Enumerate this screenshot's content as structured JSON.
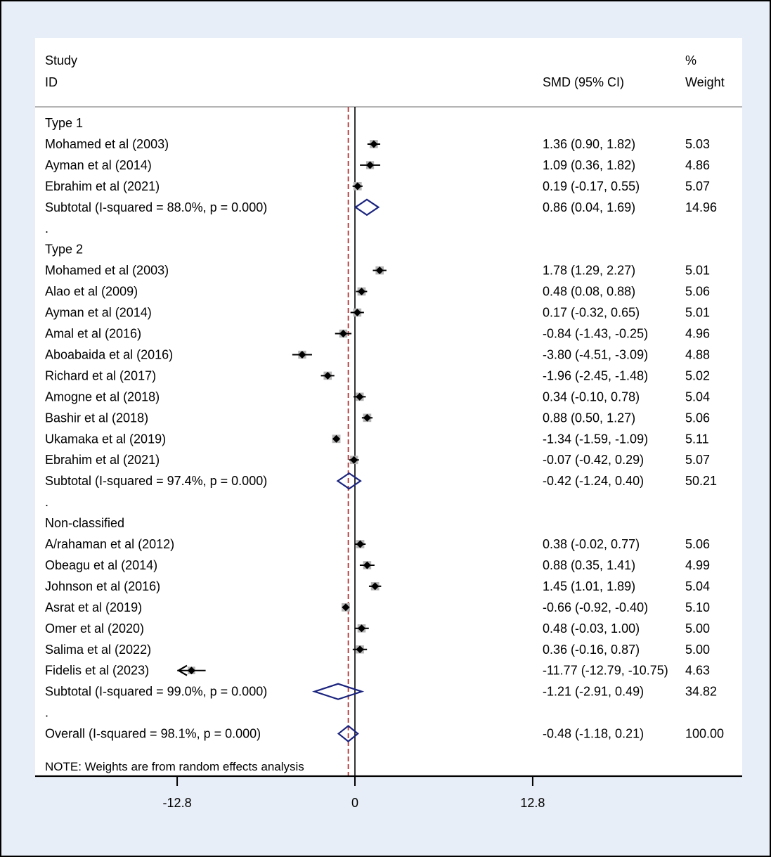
{
  "chart_data": {
    "type": "forest",
    "header": {
      "study": "Study",
      "id": "ID",
      "smd": "SMD (95% CI)",
      "pct": "%",
      "weight": "Weight"
    },
    "xaxis": {
      "ticks": [
        -12.8,
        0,
        12.8
      ],
      "tick_labels": [
        "-12.8",
        "0",
        "12.8"
      ]
    },
    "overall_line": -0.48,
    "groups": [
      {
        "title": "Type 1",
        "studies": [
          {
            "name": "Mohamed et al (2003)",
            "est": 1.36,
            "lo": 0.9,
            "hi": 1.82,
            "ci": "1.36 (0.90, 1.82)",
            "weight": "5.03"
          },
          {
            "name": "Ayman et al (2014)",
            "est": 1.09,
            "lo": 0.36,
            "hi": 1.82,
            "ci": "1.09 (0.36, 1.82)",
            "weight": "4.86"
          },
          {
            "name": "Ebrahim et al (2021)",
            "est": 0.19,
            "lo": -0.17,
            "hi": 0.55,
            "ci": "0.19 (-0.17, 0.55)",
            "weight": "5.07"
          }
        ],
        "subtotal": {
          "label": "Subtotal  (I-squared = 88.0%, p = 0.000)",
          "est": 0.86,
          "lo": 0.04,
          "hi": 1.69,
          "ci": "0.86 (0.04, 1.69)",
          "weight": "14.96"
        }
      },
      {
        "title": "Type 2",
        "studies": [
          {
            "name": "Mohamed et al (2003)",
            "est": 1.78,
            "lo": 1.29,
            "hi": 2.27,
            "ci": "1.78 (1.29, 2.27)",
            "weight": "5.01"
          },
          {
            "name": "Alao et al (2009)",
            "est": 0.48,
            "lo": 0.08,
            "hi": 0.88,
            "ci": "0.48 (0.08, 0.88)",
            "weight": "5.06"
          },
          {
            "name": "Ayman et al (2014)",
            "est": 0.17,
            "lo": -0.32,
            "hi": 0.65,
            "ci": "0.17 (-0.32, 0.65)",
            "weight": "5.01"
          },
          {
            "name": "Amal et al (2016)",
            "est": -0.84,
            "lo": -1.43,
            "hi": -0.25,
            "ci": "-0.84 (-1.43, -0.25)",
            "weight": "4.96"
          },
          {
            "name": "Aboabaida et al (2016)",
            "est": -3.8,
            "lo": -4.51,
            "hi": -3.09,
            "ci": "-3.80 (-4.51, -3.09)",
            "weight": "4.88"
          },
          {
            "name": "Richard et al (2017)",
            "est": -1.96,
            "lo": -2.45,
            "hi": -1.48,
            "ci": "-1.96 (-2.45, -1.48)",
            "weight": "5.02"
          },
          {
            "name": "Amogne et al (2018)",
            "est": 0.34,
            "lo": -0.1,
            "hi": 0.78,
            "ci": "0.34 (-0.10, 0.78)",
            "weight": "5.04"
          },
          {
            "name": "Bashir et al (2018)",
            "est": 0.88,
            "lo": 0.5,
            "hi": 1.27,
            "ci": "0.88 (0.50, 1.27)",
            "weight": "5.06"
          },
          {
            "name": "Ukamaka et al (2019)",
            "est": -1.34,
            "lo": -1.59,
            "hi": -1.09,
            "ci": "-1.34 (-1.59, -1.09)",
            "weight": "5.11"
          },
          {
            "name": "Ebrahim et al (2021)",
            "est": -0.07,
            "lo": -0.42,
            "hi": 0.29,
            "ci": "-0.07 (-0.42, 0.29)",
            "weight": "5.07"
          }
        ],
        "subtotal": {
          "label": "Subtotal  (I-squared = 97.4%, p = 0.000)",
          "est": -0.42,
          "lo": -1.24,
          "hi": 0.4,
          "ci": "-0.42 (-1.24, 0.40)",
          "weight": "50.21"
        }
      },
      {
        "title": "Non-classified",
        "studies": [
          {
            "name": "A/rahaman et al (2012)",
            "est": 0.38,
            "lo": -0.02,
            "hi": 0.77,
            "ci": "0.38 (-0.02, 0.77)",
            "weight": "5.06"
          },
          {
            "name": "Obeagu et al (2014)",
            "est": 0.88,
            "lo": 0.35,
            "hi": 1.41,
            "ci": "0.88 (0.35, 1.41)",
            "weight": "4.99"
          },
          {
            "name": "Johnson et al (2016)",
            "est": 1.45,
            "lo": 1.01,
            "hi": 1.89,
            "ci": "1.45 (1.01, 1.89)",
            "weight": "5.04"
          },
          {
            "name": "Asrat et al (2019)",
            "est": -0.66,
            "lo": -0.92,
            "hi": -0.4,
            "ci": "-0.66 (-0.92, -0.40)",
            "weight": "5.10"
          },
          {
            "name": "Omer et al (2020)",
            "est": 0.48,
            "lo": -0.03,
            "hi": 1.0,
            "ci": "0.48 (-0.03, 1.00)",
            "weight": "5.00"
          },
          {
            "name": "Salima et al (2022)",
            "est": 0.36,
            "lo": -0.16,
            "hi": 0.87,
            "ci": "0.36 (-0.16, 0.87)",
            "weight": "5.00"
          },
          {
            "name": "Fidelis et al (2023)",
            "est": -11.77,
            "lo": -12.79,
            "hi": -10.75,
            "ci": "-11.77 (-12.79, -10.75)",
            "weight": "4.63"
          }
        ],
        "subtotal": {
          "label": "Subtotal  (I-squared = 99.0%, p = 0.000)",
          "est": -1.21,
          "lo": -2.91,
          "hi": 0.49,
          "ci": "-1.21 (-2.91, 0.49)",
          "weight": "34.82"
        }
      }
    ],
    "overall": {
      "label": "Overall  (I-squared = 98.1%, p = 0.000)",
      "est": -0.48,
      "lo": -1.18,
      "hi": 0.21,
      "ci": "-0.48 (-1.18, 0.21)",
      "weight": "100.00"
    },
    "note": "NOTE: Weights are from random effects analysis",
    "colors": {
      "marker": "#000000",
      "box": "#b4b4b4",
      "diamond": "#1a237e",
      "ref_line": "#000000",
      "overall_line": "#b22222"
    }
  }
}
